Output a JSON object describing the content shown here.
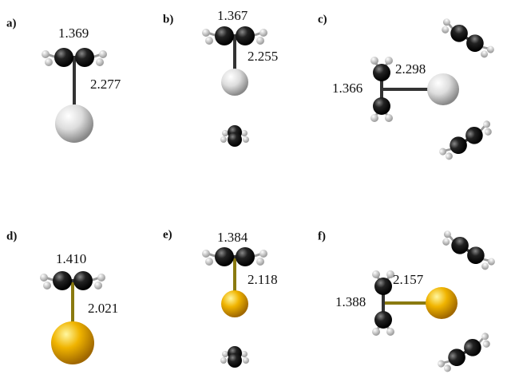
{
  "panels": [
    {
      "label": "a)",
      "lengths": [
        "1.369",
        "2.277"
      ]
    },
    {
      "label": "b)",
      "lengths": [
        "1.367",
        "2.255"
      ]
    },
    {
      "label": "c)",
      "lengths": [
        "2.298",
        "1.366"
      ]
    },
    {
      "label": "d)",
      "lengths": [
        "1.410",
        "2.021"
      ]
    },
    {
      "label": "e)",
      "lengths": [
        "1.384",
        "2.118"
      ]
    },
    {
      "label": "f)",
      "lengths": [
        "2.157",
        "1.388"
      ]
    }
  ]
}
